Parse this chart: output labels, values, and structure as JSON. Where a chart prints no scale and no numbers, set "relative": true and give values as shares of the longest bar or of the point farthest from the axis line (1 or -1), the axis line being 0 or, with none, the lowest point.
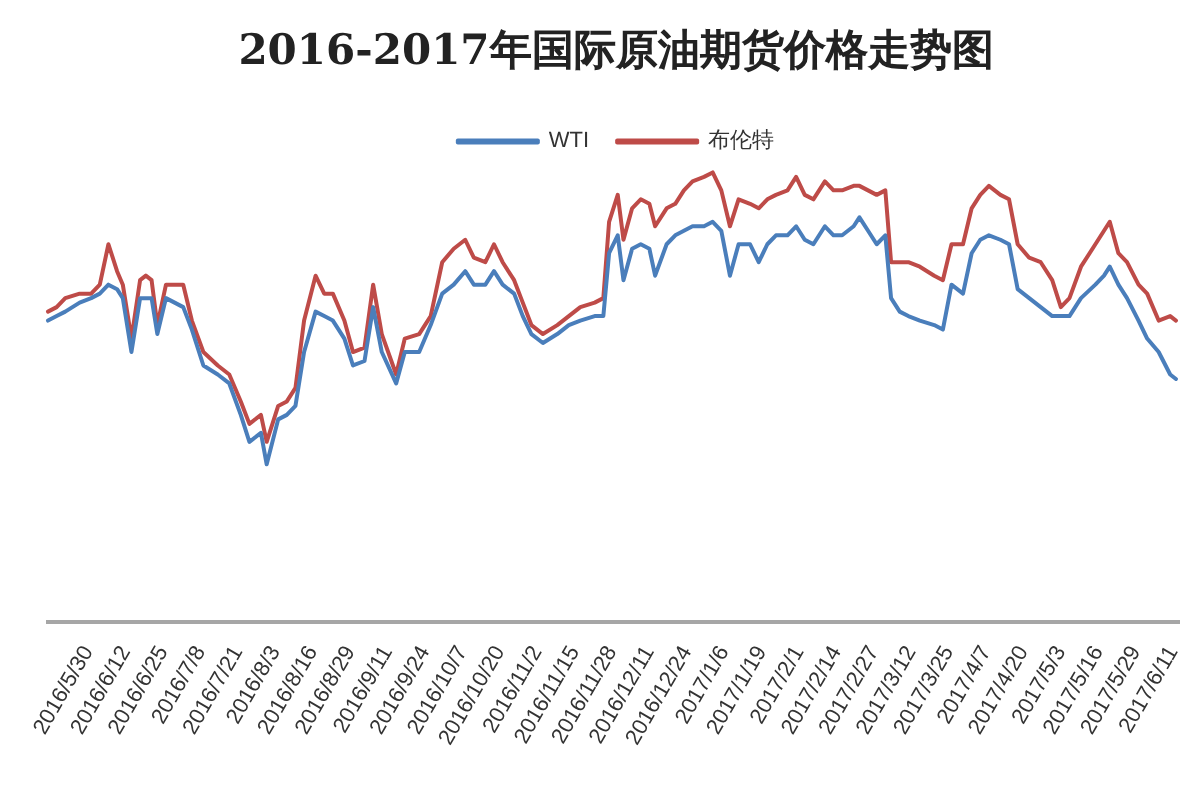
{
  "chart_data": {
    "type": "line",
    "title": "2016-2017年国际原油期货价格走势图",
    "relative": true,
    "legend": "top",
    "x": [
      "2016-05-16",
      "2016-05-19",
      "2016-05-22",
      "2016-05-27",
      "2016-05-31",
      "2016-06-03",
      "2016-06-06",
      "2016-06-09",
      "2016-06-11",
      "2016-06-14",
      "2016-06-17",
      "2016-06-19",
      "2016-06-21",
      "2016-06-23",
      "2016-06-26",
      "2016-06-29",
      "2016-07-02",
      "2016-07-05",
      "2016-07-09",
      "2016-07-14",
      "2016-07-18",
      "2016-07-22",
      "2016-07-25",
      "2016-07-29",
      "2016-07-31",
      "2016-08-04",
      "2016-08-07",
      "2016-08-10",
      "2016-08-13",
      "2016-08-17",
      "2016-08-20",
      "2016-08-23",
      "2016-08-27",
      "2016-08-30",
      "2016-09-03",
      "2016-09-06",
      "2016-09-09",
      "2016-09-14",
      "2016-09-17",
      "2016-09-22",
      "2016-09-26",
      "2016-09-30",
      "2016-10-04",
      "2016-10-08",
      "2016-10-11",
      "2016-10-15",
      "2016-10-18",
      "2016-10-21",
      "2016-10-25",
      "2016-10-28",
      "2016-10-31",
      "2016-11-04",
      "2016-11-09",
      "2016-11-13",
      "2016-11-17",
      "2016-11-22",
      "2016-11-25",
      "2016-11-27",
      "2016-11-30",
      "2016-12-02",
      "2016-12-05",
      "2016-12-08",
      "2016-12-11",
      "2016-12-13",
      "2016-12-17",
      "2016-12-20",
      "2016-12-23",
      "2016-12-26",
      "2016-12-30",
      "2017-01-02",
      "2017-01-05",
      "2017-01-08",
      "2017-01-11",
      "2017-01-15",
      "2017-01-18",
      "2017-01-21",
      "2017-01-24",
      "2017-01-28",
      "2017-01-31",
      "2017-02-03",
      "2017-02-06",
      "2017-02-10",
      "2017-02-13",
      "2017-02-16",
      "2017-02-20",
      "2017-02-22",
      "2017-02-25",
      "2017-02-28",
      "2017-03-03",
      "2017-03-05",
      "2017-03-08",
      "2017-03-11",
      "2017-03-15",
      "2017-03-20",
      "2017-03-23",
      "2017-03-26",
      "2017-03-30",
      "2017-04-02",
      "2017-04-05",
      "2017-04-08",
      "2017-04-12",
      "2017-04-15",
      "2017-04-18",
      "2017-04-22",
      "2017-04-26",
      "2017-04-30",
      "2017-05-03",
      "2017-05-06",
      "2017-05-10",
      "2017-05-15",
      "2017-05-18",
      "2017-05-20",
      "2017-05-23",
      "2017-05-26",
      "2017-05-30",
      "2017-06-02",
      "2017-06-06",
      "2017-06-10",
      "2017-06-12"
    ],
    "xlim": [
      "2016-05-16",
      "2017-06-13"
    ],
    "xticks": [
      {
        "value": "2016-05-30",
        "label": "2016/5/30"
      },
      {
        "value": "2016-06-12",
        "label": "2016/6/12"
      },
      {
        "value": "2016-06-25",
        "label": "2016/6/25"
      },
      {
        "value": "2016-07-08",
        "label": "2016/7/8"
      },
      {
        "value": "2016-07-21",
        "label": "2016/7/21"
      },
      {
        "value": "2016-08-03",
        "label": "2016/8/3"
      },
      {
        "value": "2016-08-16",
        "label": "2016/8/16"
      },
      {
        "value": "2016-08-29",
        "label": "2016/8/29"
      },
      {
        "value": "2016-09-11",
        "label": "2016/9/11"
      },
      {
        "value": "2016-09-24",
        "label": "2016/9/24"
      },
      {
        "value": "2016-10-07",
        "label": "2016/10/7"
      },
      {
        "value": "2016-10-20",
        "label": "2016/10/20"
      },
      {
        "value": "2016-11-02",
        "label": "2016/11/2"
      },
      {
        "value": "2016-11-15",
        "label": "2016/11/15"
      },
      {
        "value": "2016-11-28",
        "label": "2016/11/28"
      },
      {
        "value": "2016-12-11",
        "label": "2016/12/11"
      },
      {
        "value": "2016-12-24",
        "label": "2016/12/24"
      },
      {
        "value": "2017-01-06",
        "label": "2017/1/6"
      },
      {
        "value": "2017-01-19",
        "label": "2017/1/19"
      },
      {
        "value": "2017-02-01",
        "label": "2017/2/1"
      },
      {
        "value": "2017-02-14",
        "label": "2017/2/14"
      },
      {
        "value": "2017-02-27",
        "label": "2017/2/27"
      },
      {
        "value": "2017-03-12",
        "label": "2017/3/12"
      },
      {
        "value": "2017-03-25",
        "label": "2017/3/25"
      },
      {
        "value": "2017-04-07",
        "label": "2017/4/7"
      },
      {
        "value": "2017-04-20",
        "label": "2017/4/20"
      },
      {
        "value": "2017-05-03",
        "label": "2017/5/3"
      },
      {
        "value": "2017-05-16",
        "label": "2017/5/16"
      },
      {
        "value": "2017-05-29",
        "label": "2017/5/29"
      },
      {
        "value": "2017-06-11",
        "label": "2017/6/11"
      }
    ],
    "series": [
      {
        "name": "WTI",
        "color": "#4a7ebb",
        "values": [
          0.67,
          0.68,
          0.69,
          0.71,
          0.72,
          0.73,
          0.75,
          0.74,
          0.72,
          0.6,
          0.72,
          0.72,
          0.72,
          0.64,
          0.72,
          0.71,
          0.7,
          0.65,
          0.57,
          0.55,
          0.53,
          0.46,
          0.4,
          0.42,
          0.35,
          0.45,
          0.46,
          0.48,
          0.6,
          0.69,
          0.68,
          0.67,
          0.63,
          0.57,
          0.58,
          0.7,
          0.6,
          0.53,
          0.6,
          0.6,
          0.66,
          0.73,
          0.75,
          0.78,
          0.75,
          0.75,
          0.78,
          0.75,
          0.73,
          0.68,
          0.64,
          0.62,
          0.64,
          0.66,
          0.67,
          0.68,
          0.68,
          0.82,
          0.86,
          0.76,
          0.83,
          0.84,
          0.83,
          0.77,
          0.84,
          0.86,
          0.87,
          0.88,
          0.88,
          0.89,
          0.87,
          0.77,
          0.84,
          0.84,
          0.8,
          0.84,
          0.86,
          0.86,
          0.88,
          0.85,
          0.84,
          0.88,
          0.86,
          0.86,
          0.88,
          0.9,
          0.87,
          0.84,
          0.86,
          0.72,
          0.69,
          0.68,
          0.67,
          0.66,
          0.65,
          0.75,
          0.73,
          0.82,
          0.85,
          0.86,
          0.85,
          0.84,
          0.74,
          0.72,
          0.7,
          0.68,
          0.68,
          0.68,
          0.72,
          0.75,
          0.77,
          0.79,
          0.75,
          0.72,
          0.67,
          0.63,
          0.6,
          0.55,
          0.54
        ]
      },
      {
        "name": "布伦特",
        "color": "#be4b48",
        "values": [
          0.69,
          0.7,
          0.72,
          0.73,
          0.73,
          0.75,
          0.84,
          0.78,
          0.75,
          0.63,
          0.76,
          0.77,
          0.76,
          0.66,
          0.75,
          0.75,
          0.75,
          0.67,
          0.6,
          0.57,
          0.55,
          0.49,
          0.44,
          0.46,
          0.4,
          0.48,
          0.49,
          0.52,
          0.67,
          0.77,
          0.73,
          0.73,
          0.67,
          0.6,
          0.61,
          0.75,
          0.64,
          0.55,
          0.63,
          0.64,
          0.68,
          0.8,
          0.83,
          0.85,
          0.81,
          0.8,
          0.84,
          0.8,
          0.76,
          0.71,
          0.66,
          0.64,
          0.66,
          0.68,
          0.7,
          0.71,
          0.72,
          0.89,
          0.95,
          0.85,
          0.92,
          0.94,
          0.93,
          0.88,
          0.92,
          0.93,
          0.96,
          0.98,
          0.99,
          1.0,
          0.96,
          0.88,
          0.94,
          0.93,
          0.92,
          0.94,
          0.95,
          0.96,
          0.99,
          0.95,
          0.94,
          0.98,
          0.96,
          0.96,
          0.97,
          0.97,
          0.96,
          0.95,
          0.96,
          0.8,
          0.8,
          0.8,
          0.79,
          0.77,
          0.76,
          0.84,
          0.84,
          0.92,
          0.95,
          0.97,
          0.95,
          0.94,
          0.84,
          0.81,
          0.8,
          0.76,
          0.7,
          0.72,
          0.79,
          0.84,
          0.87,
          0.89,
          0.82,
          0.8,
          0.75,
          0.73,
          0.67,
          0.68,
          0.67
        ]
      }
    ]
  }
}
